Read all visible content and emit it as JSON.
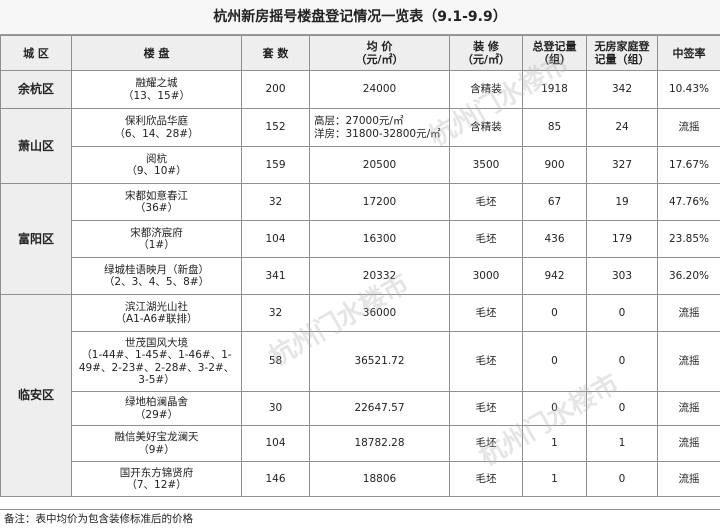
{
  "title": "杭州新房摇号楼盘登记情况一览表（9.1-9.9）",
  "headers": {
    "district": "城 区",
    "project": "楼 盘",
    "units": "套 数",
    "price": "均 价",
    "price_unit": "（元/㎡）",
    "decoration": "装 修",
    "decoration_unit": "（元/㎡）",
    "total_reg": "总登记量",
    "total_reg_unit": "（组）",
    "no_house_reg": "无房家庭登",
    "no_house_reg_unit": "记量（组）",
    "rate": "中签率"
  },
  "districts": [
    "余杭区",
    "萧山区",
    "富阳区",
    "临安区"
  ],
  "rows": [
    {
      "name": "融耀之城",
      "batch": "（13、15#）",
      "units": "200",
      "price": "24000",
      "decoration": "含精装",
      "total": "1918",
      "nohouse": "342",
      "rate": "10.43%"
    },
    {
      "name": "保利欣品华庭",
      "batch": "（6、14、28#）",
      "units": "152",
      "price_line1": "高层：27000元/㎡",
      "price_line2": "洋房：31800-32800元/㎡",
      "decoration": "含精装",
      "total": "85",
      "nohouse": "24",
      "rate": "流摇"
    },
    {
      "name": "阅杭",
      "batch": "（9、10#）",
      "units": "159",
      "price": "20500",
      "decoration": "3500",
      "total": "900",
      "nohouse": "327",
      "rate": "17.67%"
    },
    {
      "name": "宋都如意春江",
      "batch": "（36#）",
      "units": "32",
      "price": "17200",
      "decoration": "毛坯",
      "total": "67",
      "nohouse": "19",
      "rate": "47.76%"
    },
    {
      "name": "宋都济宸府",
      "batch": "（1#）",
      "units": "104",
      "price": "16300",
      "decoration": "毛坯",
      "total": "436",
      "nohouse": "179",
      "rate": "23.85%"
    },
    {
      "name": "绿城桂语映月（新盘）",
      "batch": "（2、3、4、5、8#）",
      "units": "341",
      "price": "20332",
      "decoration": "3000",
      "total": "942",
      "nohouse": "303",
      "rate": "36.20%"
    },
    {
      "name": "滨江湖光山社",
      "batch": "（A1-A6#联排）",
      "units": "32",
      "price": "36000",
      "decoration": "毛坯",
      "total": "0",
      "nohouse": "0",
      "rate": "流摇"
    },
    {
      "name": "世茂国风大境",
      "batch1": "（1-44#、1-45#、1-46#、1-",
      "batch2": "49#、2-23#、2-28#、3-2#、",
      "batch3": "3-5#）",
      "units": "58",
      "price": "36521.72",
      "decoration": "毛坯",
      "total": "0",
      "nohouse": "0",
      "rate": "流摇"
    },
    {
      "name": "绿地柏澜晶舍",
      "batch": "（29#）",
      "units": "30",
      "price": "22647.57",
      "decoration": "毛坯",
      "total": "0",
      "nohouse": "0",
      "rate": "流摇"
    },
    {
      "name": "融信美好宝龙澜天",
      "batch": "（9#）",
      "units": "104",
      "price": "18782.28",
      "decoration": "毛坯",
      "total": "1",
      "nohouse": "1",
      "rate": "流摇"
    },
    {
      "name": "国开东方锦贤府",
      "batch": "（7、12#）",
      "units": "146",
      "price": "18806",
      "decoration": "毛坯",
      "total": "1",
      "nohouse": "0",
      "rate": "流摇"
    }
  ],
  "note": "备注：表中均价为包含装修标准后的价格",
  "watermark": "杭州门水楼市"
}
